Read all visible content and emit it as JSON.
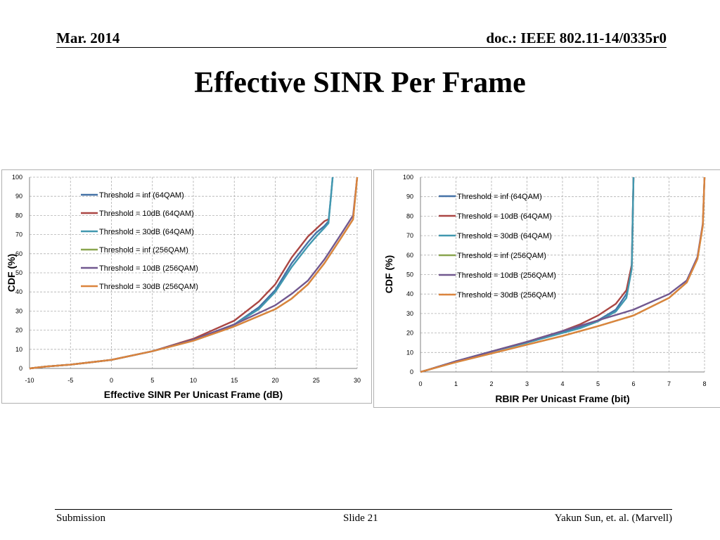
{
  "header": {
    "date": "Mar. 2014",
    "doc_id": "doc.: IEEE 802.11-14/0335r0"
  },
  "slide_title": "Effective SINR Per Frame",
  "footer": {
    "left": "Submission",
    "center": "Slide 21",
    "right": "Yakun Sun, et. al. (Marvell)"
  },
  "colors": {
    "series": [
      "#4572a7",
      "#aa4643",
      "#4198af",
      "#89a54e",
      "#71588f",
      "#db843d"
    ],
    "grid": "#b0b0b0",
    "axis": "#808080"
  },
  "chart_data": [
    {
      "type": "line",
      "xlabel": "Effective SINR Per Unicast Frame (dB)",
      "ylabel": "CDF (%)",
      "xlim": [
        -10,
        30
      ],
      "ylim": [
        0,
        100
      ],
      "xticks": [
        "-10",
        "-5",
        "0",
        "5",
        "10",
        "15",
        "20",
        "25",
        "30"
      ],
      "yticks": [
        "0",
        "10",
        "20",
        "30",
        "40",
        "50",
        "60",
        "70",
        "80",
        "90",
        "100"
      ],
      "grid": true,
      "legend": "top-left",
      "series": [
        {
          "name": "Threshold = inf (64QAM)",
          "color": "#4572a7",
          "x": [
            -10,
            -8,
            -5,
            0,
            5,
            10,
            15,
            18,
            20,
            22,
            24,
            25,
            26,
            26.5,
            26.8,
            27
          ],
          "y": [
            0,
            1,
            2,
            4.5,
            9,
            15,
            23,
            32,
            41,
            55,
            66,
            71,
            74.5,
            77,
            90,
            100
          ]
        },
        {
          "name": "Threshold = 10dB (64QAM)",
          "color": "#aa4643",
          "x": [
            -10,
            -8,
            -5,
            0,
            5,
            10,
            15,
            18,
            20,
            22,
            24,
            25,
            26,
            26.5
          ],
          "y": [
            0,
            1,
            2,
            4.5,
            9,
            15.5,
            25,
            35,
            44,
            58,
            69,
            73,
            77,
            78
          ]
        },
        {
          "name": "Threshold = 30dB (64QAM)",
          "color": "#4198af",
          "x": [
            -10,
            -8,
            -5,
            0,
            5,
            10,
            15,
            18,
            20,
            22,
            24,
            25,
            26,
            26.5,
            26.8,
            27
          ],
          "y": [
            0,
            1,
            2,
            4.5,
            9,
            15,
            23,
            31,
            40,
            53,
            64,
            69,
            73.5,
            76,
            90,
            100
          ]
        },
        {
          "name": "Threshold = inf (256QAM)",
          "color": "#89a54e",
          "x": [
            -10,
            -8,
            -5,
            0,
            5,
            10,
            15,
            20,
            22,
            24,
            26,
            28,
            29.5,
            30
          ],
          "y": [
            0,
            1,
            2,
            4.5,
            9,
            14.5,
            22,
            31,
            36.5,
            44,
            55,
            68,
            78,
            100
          ]
        },
        {
          "name": "Threshold = 10dB (256QAM)",
          "color": "#71588f",
          "x": [
            -10,
            -8,
            -5,
            0,
            5,
            10,
            15,
            20,
            22,
            24,
            26,
            28,
            29.5,
            30
          ],
          "y": [
            0,
            1,
            2,
            4.5,
            9,
            15,
            23,
            33,
            39,
            46,
            57,
            70,
            80,
            100
          ]
        },
        {
          "name": "Threshold = 30dB (256QAM)",
          "color": "#db843d",
          "x": [
            -10,
            -8,
            -5,
            0,
            5,
            10,
            15,
            20,
            22,
            24,
            26,
            28,
            29.5,
            30
          ],
          "y": [
            0,
            1,
            2,
            4.5,
            9,
            14.5,
            22,
            31,
            36.5,
            44,
            55,
            68,
            78,
            100
          ]
        }
      ]
    },
    {
      "type": "line",
      "xlabel": "RBIR Per Unicast Frame (bit)",
      "ylabel": "CDF (%)",
      "xlim": [
        0,
        8
      ],
      "ylim": [
        0,
        100
      ],
      "xticks": [
        "0",
        "1",
        "2",
        "3",
        "4",
        "5",
        "6",
        "7",
        "8"
      ],
      "yticks": [
        "0",
        "10",
        "20",
        "30",
        "40",
        "50",
        "60",
        "70",
        "80",
        "90",
        "100"
      ],
      "grid": true,
      "legend": "top-left",
      "series": [
        {
          "name": "Threshold = inf (64QAM)",
          "color": "#4572a7",
          "x": [
            0,
            0.2,
            1,
            2,
            3,
            4,
            4.5,
            5,
            5.5,
            5.8,
            5.95,
            6
          ],
          "y": [
            0,
            1,
            5.5,
            10.5,
            15.5,
            20.5,
            23,
            26.5,
            32,
            40,
            55,
            100
          ]
        },
        {
          "name": "Threshold = 10dB (64QAM)",
          "color": "#aa4643",
          "x": [
            0,
            0.2,
            1,
            2,
            3,
            4,
            4.5,
            5,
            5.5,
            5.8,
            5.95,
            6
          ],
          "y": [
            0,
            1,
            5.5,
            10.5,
            15.5,
            21,
            24.5,
            29,
            35,
            42,
            55,
            100
          ]
        },
        {
          "name": "Threshold = 30dB (64QAM)",
          "color": "#4198af",
          "x": [
            0,
            0.2,
            1,
            2,
            3,
            4,
            4.5,
            5,
            5.5,
            5.8,
            5.95,
            6
          ],
          "y": [
            0,
            1,
            5.5,
            10.5,
            15,
            20,
            22.5,
            26,
            31,
            38,
            53,
            100
          ]
        },
        {
          "name": "Threshold = inf (256QAM)",
          "color": "#89a54e",
          "x": [
            0,
            0.2,
            1,
            2,
            3,
            4,
            5,
            6,
            7,
            7.5,
            7.8,
            7.95,
            8
          ],
          "y": [
            0,
            1,
            5,
            9.5,
            14,
            18.5,
            23.5,
            29,
            38,
            46,
            58,
            75,
            100
          ]
        },
        {
          "name": "Threshold = 10dB (256QAM)",
          "color": "#71588f",
          "x": [
            0,
            0.2,
            1,
            2,
            3,
            4,
            5,
            6,
            7,
            7.5,
            7.8,
            7.95,
            8
          ],
          "y": [
            0,
            1,
            5.5,
            10.5,
            15.5,
            21,
            26.5,
            32,
            40,
            47,
            59,
            76,
            100
          ]
        },
        {
          "name": "Threshold = 30dB (256QAM)",
          "color": "#db843d",
          "x": [
            0,
            0.2,
            1,
            2,
            3,
            4,
            5,
            6,
            7,
            7.5,
            7.8,
            7.95,
            8
          ],
          "y": [
            0,
            1,
            5,
            9.5,
            14,
            18.5,
            23.5,
            29,
            38,
            46,
            58,
            75,
            100
          ]
        }
      ]
    }
  ]
}
